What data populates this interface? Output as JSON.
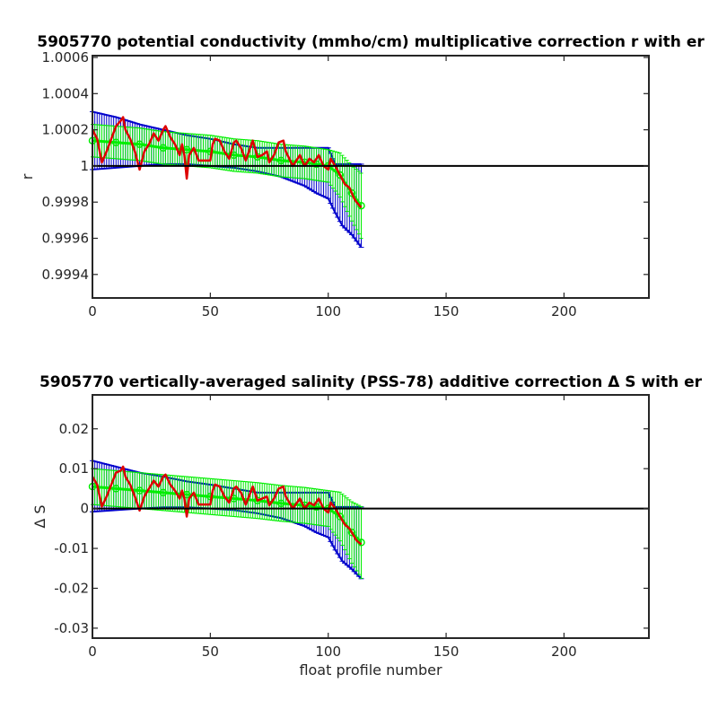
{
  "chart_data": [
    {
      "type": "line",
      "title": "5905770 potential conductivity (mmho/cm) multiplicative correction r with er",
      "xlabel": "",
      "ylabel": "r",
      "xlim": [
        0,
        236
      ],
      "ylim": [
        0.99927,
        1.00061
      ],
      "xticks": [
        0,
        50,
        100,
        150,
        200
      ],
      "xtick_labels": [
        "0",
        "50",
        "100",
        "150",
        "200"
      ],
      "yticks": [
        0.9994,
        0.9996,
        0.9998,
        1.0,
        1.0002,
        1.0004,
        1.0006
      ],
      "ytick_labels": [
        "0.9994",
        "0.9996",
        "0.9998",
        "1",
        "1.0002",
        "1.0004",
        "1.0006"
      ],
      "reference_line": 1.0,
      "colors": {
        "error_bars": "#0000cc",
        "mapped": "#00ee00",
        "raw": "#dd0000",
        "reference": "#000000"
      },
      "series": [
        {
          "role": "raw",
          "x": [
            0,
            2,
            4,
            6,
            8,
            10,
            12,
            13,
            14,
            16,
            18,
            20,
            22,
            24,
            26,
            28,
            30,
            31,
            33,
            35,
            37,
            38,
            39,
            40,
            41,
            43,
            45,
            50,
            51,
            52,
            54,
            56,
            58,
            60,
            61,
            63,
            65,
            68,
            70,
            72,
            74,
            75,
            77,
            79,
            81,
            82,
            85,
            88,
            90,
            92,
            94,
            96,
            98,
            100,
            101,
            103,
            105,
            107,
            109,
            111,
            112,
            114
          ],
          "y": [
            1.0002,
            1.00015,
            1.00002,
            1.00008,
            1.00015,
            1.00022,
            1.00025,
            1.00027,
            1.0002,
            1.00015,
            1.00008,
            0.99998,
            1.00008,
            1.00012,
            1.00018,
            1.00014,
            1.0002,
            1.00022,
            1.00016,
            1.00012,
            1.00006,
            1.00012,
            1.00006,
            0.99993,
            1.00006,
            1.0001,
            1.00003,
            1.00003,
            1.00012,
            1.00015,
            1.00014,
            1.00008,
            1.00004,
            1.00013,
            1.00014,
            1.0001,
            1.00003,
            1.00014,
            1.00005,
            1.00006,
            1.00008,
            1.00002,
            1.00006,
            1.00013,
            1.00014,
            1.00008,
            1.0,
            1.00006,
            1.0,
            1.00004,
            1.00002,
            1.00006,
            1.0,
            0.99998,
            1.00004,
            1.0,
            0.99995,
            0.9999,
            0.99988,
            0.99982,
            0.9998,
            0.99977
          ]
        },
        {
          "role": "mapped",
          "x": [
            0,
            10,
            20,
            30,
            40,
            50,
            60,
            70,
            80,
            90,
            95,
            100,
            105,
            110,
            114
          ],
          "y": [
            1.00014,
            1.00013,
            1.00012,
            1.0001,
            1.00009,
            1.00008,
            1.00006,
            1.00005,
            1.00003,
            1.00002,
            1.00001,
            1.0,
            0.99995,
            0.99985,
            0.99978
          ]
        },
        {
          "role": "error_upper",
          "x": [
            0,
            10,
            20,
            30,
            40,
            50,
            60,
            70,
            80,
            90,
            95,
            100,
            103,
            106,
            110,
            114
          ],
          "y": [
            1.0003,
            1.00027,
            1.00023,
            1.0002,
            1.00017,
            1.00015,
            1.00012,
            1.0001,
            1.0001,
            1.0001,
            1.0001,
            1.0001,
            1.00001,
            1.00001,
            1.00001,
            1.00001
          ]
        },
        {
          "role": "error_lower",
          "x": [
            0,
            10,
            20,
            30,
            40,
            50,
            60,
            70,
            80,
            90,
            95,
            100,
            103,
            106,
            110,
            114
          ],
          "y": [
            0.99998,
            0.99999,
            1.0,
            1.00001,
            1.00001,
            1.0,
            0.99999,
            0.99997,
            0.99994,
            0.99989,
            0.99985,
            0.99982,
            0.99974,
            0.99967,
            0.99962,
            0.99955
          ]
        }
      ]
    },
    {
      "type": "line",
      "title": "5905770 vertically-averaged salinity (PSS-78) additive correction Δ S with er",
      "xlabel": "float profile number",
      "ylabel": "Δ S",
      "xlim": [
        0,
        236
      ],
      "ylim": [
        -0.0325,
        0.0285
      ],
      "xticks": [
        0,
        50,
        100,
        150,
        200
      ],
      "xtick_labels": [
        "0",
        "50",
        "100",
        "150",
        "200"
      ],
      "yticks": [
        -0.03,
        -0.02,
        -0.01,
        0,
        0.01,
        0.02
      ],
      "ytick_labels": [
        "-0.03",
        "-0.02",
        "-0.01",
        "0",
        "0.01",
        "0.02"
      ],
      "reference_line": 0,
      "colors": {
        "error_bars": "#0000cc",
        "mapped": "#00ee00",
        "raw": "#dd0000",
        "reference": "#000000"
      },
      "series": [
        {
          "role": "raw",
          "x": [
            0,
            2,
            4,
            6,
            8,
            10,
            12,
            13,
            14,
            16,
            18,
            20,
            22,
            24,
            26,
            28,
            30,
            31,
            33,
            35,
            37,
            38,
            39,
            40,
            41,
            43,
            45,
            50,
            51,
            52,
            54,
            56,
            58,
            60,
            61,
            63,
            65,
            68,
            70,
            72,
            74,
            75,
            77,
            79,
            81,
            82,
            85,
            88,
            90,
            92,
            94,
            96,
            98,
            100,
            101,
            103,
            105,
            107,
            109,
            111,
            112,
            114
          ],
          "y": [
            0.008,
            0.006,
            0.0005,
            0.003,
            0.006,
            0.009,
            0.0095,
            0.0105,
            0.008,
            0.006,
            0.003,
            -0.0005,
            0.003,
            0.005,
            0.007,
            0.0055,
            0.008,
            0.0085,
            0.006,
            0.0045,
            0.0025,
            0.0045,
            0.0025,
            -0.002,
            0.0025,
            0.004,
            0.001,
            0.001,
            0.0045,
            0.006,
            0.0055,
            0.003,
            0.0015,
            0.005,
            0.0055,
            0.004,
            0.001,
            0.0055,
            0.002,
            0.0025,
            0.003,
            0.0008,
            0.0025,
            0.005,
            0.0055,
            0.003,
            0.0,
            0.0025,
            0.0,
            0.0015,
            0.0008,
            0.0025,
            0.0,
            -0.001,
            0.0015,
            0.0,
            -0.002,
            -0.004,
            -0.005,
            -0.007,
            -0.008,
            -0.009
          ]
        },
        {
          "role": "mapped",
          "x": [
            0,
            10,
            20,
            30,
            40,
            50,
            60,
            70,
            80,
            90,
            95,
            100,
            105,
            110,
            114
          ],
          "y": [
            0.0055,
            0.005,
            0.0045,
            0.004,
            0.0035,
            0.003,
            0.0025,
            0.002,
            0.0013,
            0.0008,
            0.0004,
            0.0,
            -0.002,
            -0.006,
            -0.0085
          ]
        },
        {
          "role": "error_upper",
          "x": [
            0,
            10,
            20,
            30,
            40,
            50,
            60,
            70,
            80,
            90,
            95,
            100,
            103,
            106,
            110,
            114
          ],
          "y": [
            0.012,
            0.0105,
            0.009,
            0.008,
            0.0068,
            0.006,
            0.005,
            0.004,
            0.004,
            0.004,
            0.004,
            0.004,
            0.0004,
            0.0004,
            0.0004,
            0.0004
          ]
        },
        {
          "role": "error_lower",
          "x": [
            0,
            10,
            20,
            30,
            40,
            50,
            60,
            70,
            80,
            90,
            95,
            100,
            103,
            106,
            110,
            114
          ],
          "y": [
            -0.0008,
            -0.0004,
            0.0,
            0.0003,
            0.0003,
            0.0,
            -0.0004,
            -0.0012,
            -0.0024,
            -0.0044,
            -0.006,
            -0.0072,
            -0.0104,
            -0.0132,
            -0.0152,
            -0.0176
          ]
        }
      ]
    }
  ]
}
